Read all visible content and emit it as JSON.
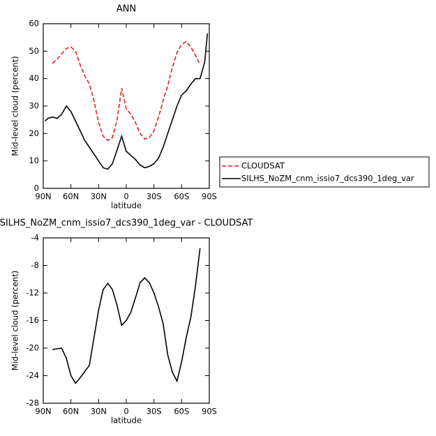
{
  "chart_data": [
    {
      "type": "line",
      "title": "ANN",
      "xlabel": "latitude",
      "ylabel": "Mid-level cloud (percent)",
      "x": [
        88,
        85,
        80,
        75,
        70,
        65,
        60,
        55,
        50,
        45,
        40,
        35,
        30,
        25,
        20,
        15,
        10,
        5,
        0,
        -5,
        -10,
        -15,
        -20,
        -25,
        -30,
        -35,
        -40,
        -45,
        -50,
        -55,
        -60,
        -65,
        -70,
        -75,
        -80,
        -85,
        -88
      ],
      "series": [
        {
          "name": "CLOUDSAT",
          "color": "#e0201b",
          "dash": true,
          "values": [
            null,
            null,
            45.5,
            47,
            49,
            51,
            51.5,
            50,
            45,
            41,
            38,
            32,
            24,
            19,
            17.5,
            18.5,
            25,
            36.5,
            29,
            27,
            24,
            20,
            18,
            18.5,
            21,
            26,
            32,
            37.5,
            44,
            49.5,
            52.5,
            53.5,
            51.5,
            48.5,
            45,
            null,
            null
          ]
        },
        {
          "name": "SILHS_NoZM_cnm_issio7_dcs390_1deg_var",
          "color": "#000000",
          "dash": false,
          "values": [
            24.5,
            25.5,
            26,
            25.5,
            27,
            30,
            28,
            24.5,
            21,
            17.5,
            15,
            12.5,
            10,
            7.5,
            7,
            9,
            14,
            19,
            13.5,
            12,
            10.5,
            8.5,
            7.5,
            8,
            9,
            11,
            15,
            20,
            25,
            30,
            34,
            35.5,
            38,
            40,
            40,
            46,
            56.5
          ]
        }
      ],
      "xlim": [
        90,
        -90
      ],
      "xticks": [
        {
          "value": 90,
          "label": "90N"
        },
        {
          "value": 60,
          "label": "60N"
        },
        {
          "value": 30,
          "label": "30N"
        },
        0,
        {
          "value": -30,
          "label": "30S"
        },
        {
          "value": -60,
          "label": "60S"
        },
        {
          "value": -90,
          "label": "90S"
        }
      ],
      "ylim": [
        0,
        60
      ],
      "yticks": [
        0,
        10,
        20,
        30,
        40,
        50,
        60
      ],
      "legend": "outside-right"
    },
    {
      "type": "line",
      "title": "SILHS_NoZM_cnm_issio7_dcs390_1deg_var - CLOUDSAT",
      "xlabel": "latitude",
      "ylabel": "Mid-level cloud (percent)",
      "x": [
        80,
        75,
        70,
        65,
        60,
        55,
        50,
        45,
        40,
        35,
        30,
        25,
        20,
        15,
        10,
        5,
        0,
        -5,
        -10,
        -15,
        -20,
        -25,
        -30,
        -35,
        -40,
        -45,
        -50,
        -55,
        -60,
        -65,
        -70,
        -75,
        -80
      ],
      "series": [
        {
          "color": "#000000",
          "dash": false,
          "values": [
            -20.2,
            -20.1,
            -20,
            -21.5,
            -24,
            -25.1,
            -24.3,
            -23.4,
            -22.5,
            -18.5,
            -14.5,
            -11.5,
            -10.6,
            -11.5,
            -13.8,
            -16.7,
            -16,
            -14.8,
            -12.7,
            -10.5,
            -9.8,
            -10.5,
            -12,
            -14,
            -16.5,
            -21,
            -23.5,
            -24.8,
            -22,
            -18.5,
            -15.5,
            -11,
            -5.5
          ]
        }
      ],
      "xlim": [
        90,
        -90
      ],
      "xticks": [
        {
          "value": 90,
          "label": "90N"
        },
        {
          "value": 60,
          "label": "60N"
        },
        {
          "value": 30,
          "label": "30N"
        },
        0,
        {
          "value": -30,
          "label": "30S"
        },
        {
          "value": -60,
          "label": "60S"
        },
        {
          "value": -90,
          "label": "90S"
        }
      ],
      "ylim": [
        -28,
        -4
      ],
      "yticks": [
        -28,
        -24,
        -20,
        -16,
        -12,
        -8,
        -4
      ]
    }
  ]
}
